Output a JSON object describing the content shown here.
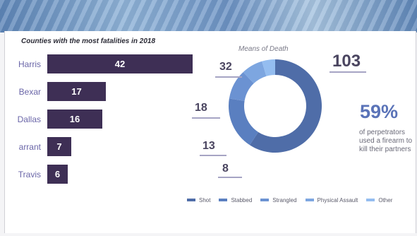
{
  "chart_data": [
    {
      "type": "bar",
      "title": "Counties with the most fatalities in 2018",
      "categories": [
        "Harris",
        "Bexar",
        "Dallas",
        "arrant",
        "Travis"
      ],
      "values": [
        42,
        17,
        16,
        7,
        6
      ],
      "bar_color": "#3e2f55",
      "label_color": "#6a66a8"
    },
    {
      "type": "pie",
      "title": "Means of Death",
      "labels": [
        "Shot",
        "Stabbed",
        "Strangled",
        "Physical Assault",
        "Other"
      ],
      "values": [
        103,
        32,
        18,
        13,
        8
      ],
      "colors": [
        "#4f6da8",
        "#5a7fc0",
        "#6b92d2",
        "#7da6e0",
        "#94bdf0"
      ],
      "legend_position": "bottom"
    }
  ],
  "stat": {
    "value": "59%",
    "desc": "of perpetrators used a firearm to kill their partners"
  }
}
